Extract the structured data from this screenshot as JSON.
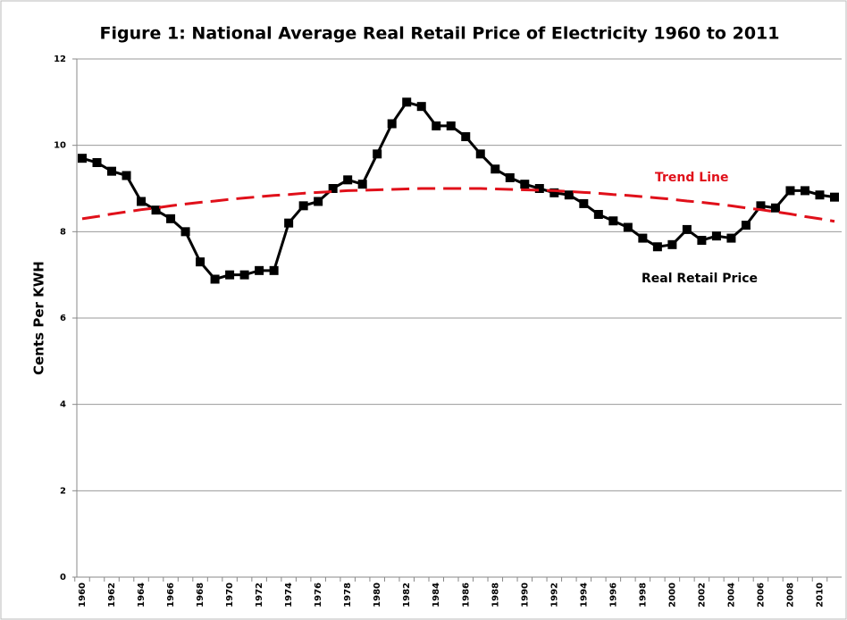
{
  "chart_data": {
    "type": "line",
    "title": "Figure 1:  National Average Real Retail Price of Electricity 1960 to 2011",
    "y_label": "Cents Per KWH",
    "categories": [
      "1960",
      null,
      "1962",
      null,
      "1964",
      null,
      "1966",
      null,
      "1968",
      null,
      "1970",
      null,
      "1972",
      null,
      "1974",
      null,
      "1976",
      null,
      "1978",
      null,
      "1980",
      null,
      "1982",
      null,
      "1984",
      null,
      "1986",
      null,
      "1988",
      null,
      "1990",
      null,
      "1992",
      null,
      "1994",
      null,
      "1996",
      null,
      "1998",
      null,
      "2000",
      null,
      "2002",
      null,
      "2004",
      null,
      "2006",
      null,
      "2008",
      null,
      "2010",
      null
    ],
    "series": [
      {
        "name": "Real Retail Price",
        "color": "#000000",
        "values": [
          9.7,
          9.6,
          9.4,
          9.3,
          8.7,
          8.5,
          8.3,
          8.0,
          7.3,
          6.9,
          7.0,
          7.0,
          7.1,
          7.1,
          8.2,
          8.6,
          8.7,
          9.0,
          9.2,
          9.1,
          9.8,
          10.5,
          11.0,
          10.9,
          10.45,
          10.45,
          10.2,
          9.8,
          9.45,
          9.25,
          9.1,
          9.0,
          8.9,
          8.85,
          8.65,
          8.4,
          8.25,
          8.1,
          7.85,
          7.65,
          7.7,
          8.05,
          7.8,
          7.9,
          7.85,
          8.15,
          8.6,
          8.55,
          8.95,
          8.95,
          8.85,
          8.8
        ]
      },
      {
        "name": "Trend Line",
        "color": "#e0101a",
        "values": [
          8.3,
          8.35,
          8.41,
          8.46,
          8.51,
          8.55,
          8.6,
          8.64,
          8.68,
          8.71,
          8.75,
          8.78,
          8.81,
          8.84,
          8.86,
          8.89,
          8.91,
          8.93,
          8.95,
          8.96,
          8.97,
          8.98,
          8.99,
          9.0,
          9.0,
          9.0,
          9.0,
          9.0,
          8.99,
          8.98,
          8.97,
          8.96,
          8.95,
          8.93,
          8.91,
          8.89,
          8.86,
          8.84,
          8.81,
          8.78,
          8.75,
          8.71,
          8.68,
          8.64,
          8.6,
          8.55,
          8.51,
          8.46,
          8.41,
          8.35,
          8.3,
          8.24
        ]
      }
    ],
    "ylim": [
      0,
      12
    ],
    "yticks": [
      0,
      2,
      4,
      6,
      8,
      10,
      12
    ],
    "grid": true
  }
}
